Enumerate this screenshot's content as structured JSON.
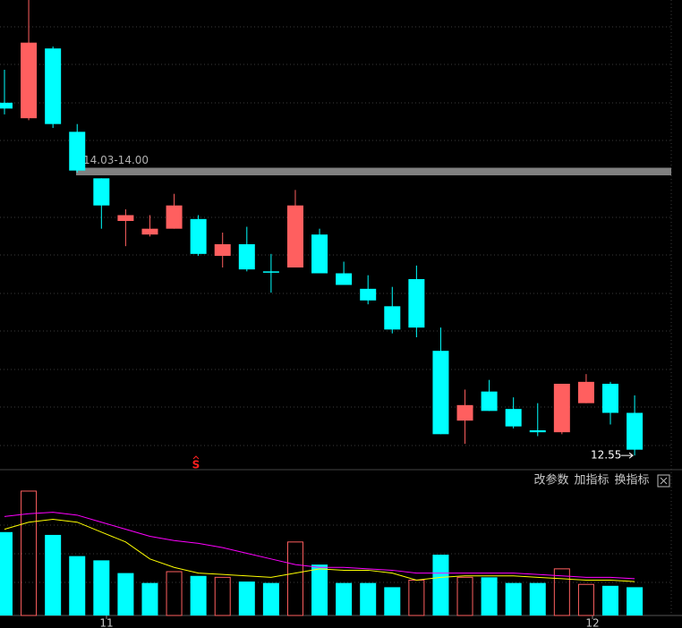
{
  "chart_data": [
    {
      "type": "candlestick",
      "up_color": "#ff5f5f",
      "down_color": "#00ffff",
      "ylim": [
        12.5,
        14.9
      ],
      "open": [
        14.37,
        14.29,
        14.65,
        14.22,
        13.98,
        13.76,
        13.69,
        13.72,
        13.77,
        13.58,
        13.64,
        13.5,
        13.52,
        13.69,
        13.49,
        13.41,
        13.32,
        13.46,
        13.09,
        12.73,
        12.88,
        12.79,
        12.68,
        12.67,
        12.82,
        12.92,
        12.77
      ],
      "high": [
        14.54,
        14.9,
        14.66,
        14.26,
        13.98,
        13.82,
        13.79,
        13.9,
        13.79,
        13.7,
        13.73,
        13.59,
        13.92,
        13.72,
        13.55,
        13.48,
        13.42,
        13.53,
        13.21,
        12.89,
        12.94,
        12.85,
        12.82,
        12.92,
        12.97,
        12.93,
        12.86
      ],
      "low": [
        14.31,
        14.28,
        14.24,
        14.01,
        13.72,
        13.63,
        13.68,
        13.72,
        13.58,
        13.52,
        13.5,
        13.39,
        13.52,
        13.49,
        13.43,
        13.33,
        13.18,
        13.16,
        12.66,
        12.61,
        12.78,
        12.69,
        12.65,
        12.66,
        12.82,
        12.71,
        12.55
      ],
      "close": [
        14.34,
        14.68,
        14.26,
        14.02,
        13.84,
        13.79,
        13.72,
        13.84,
        13.59,
        13.64,
        13.51,
        13.5,
        13.84,
        13.49,
        13.43,
        13.35,
        13.2,
        13.21,
        12.66,
        12.81,
        12.78,
        12.7,
        12.67,
        12.92,
        12.93,
        12.77,
        12.58
      ],
      "band": {
        "label": "14.03-14.00",
        "high": 14.03,
        "low": 14.0
      },
      "low_marker": 12.55,
      "signal": "S"
    },
    {
      "type": "bar",
      "ylim": [
        0,
        100
      ],
      "values": [
        59,
        88,
        57,
        42,
        39,
        30,
        23,
        31,
        28,
        27,
        24,
        23,
        52,
        36,
        23,
        23,
        20,
        25,
        43,
        27,
        27,
        23,
        23,
        33,
        22,
        21,
        20
      ],
      "ma": [
        {
          "color": "#ffff00",
          "values": [
            61,
            66,
            68,
            66,
            59,
            52,
            40,
            34,
            30,
            29,
            28,
            27,
            30,
            33,
            32,
            32,
            30,
            25,
            27,
            28,
            28,
            28,
            27,
            26,
            25,
            25,
            24
          ]
        },
        {
          "color": "#ff00ff",
          "values": [
            70,
            72,
            73,
            71,
            66,
            61,
            56,
            53,
            51,
            48,
            44,
            40,
            36,
            34,
            34,
            33,
            32,
            30,
            30,
            30,
            30,
            30,
            29,
            28,
            27,
            27,
            26
          ]
        }
      ],
      "x_labels": [
        "11",
        "12"
      ]
    }
  ],
  "toolbar": [
    "改参数",
    "加指标",
    "换指标"
  ]
}
